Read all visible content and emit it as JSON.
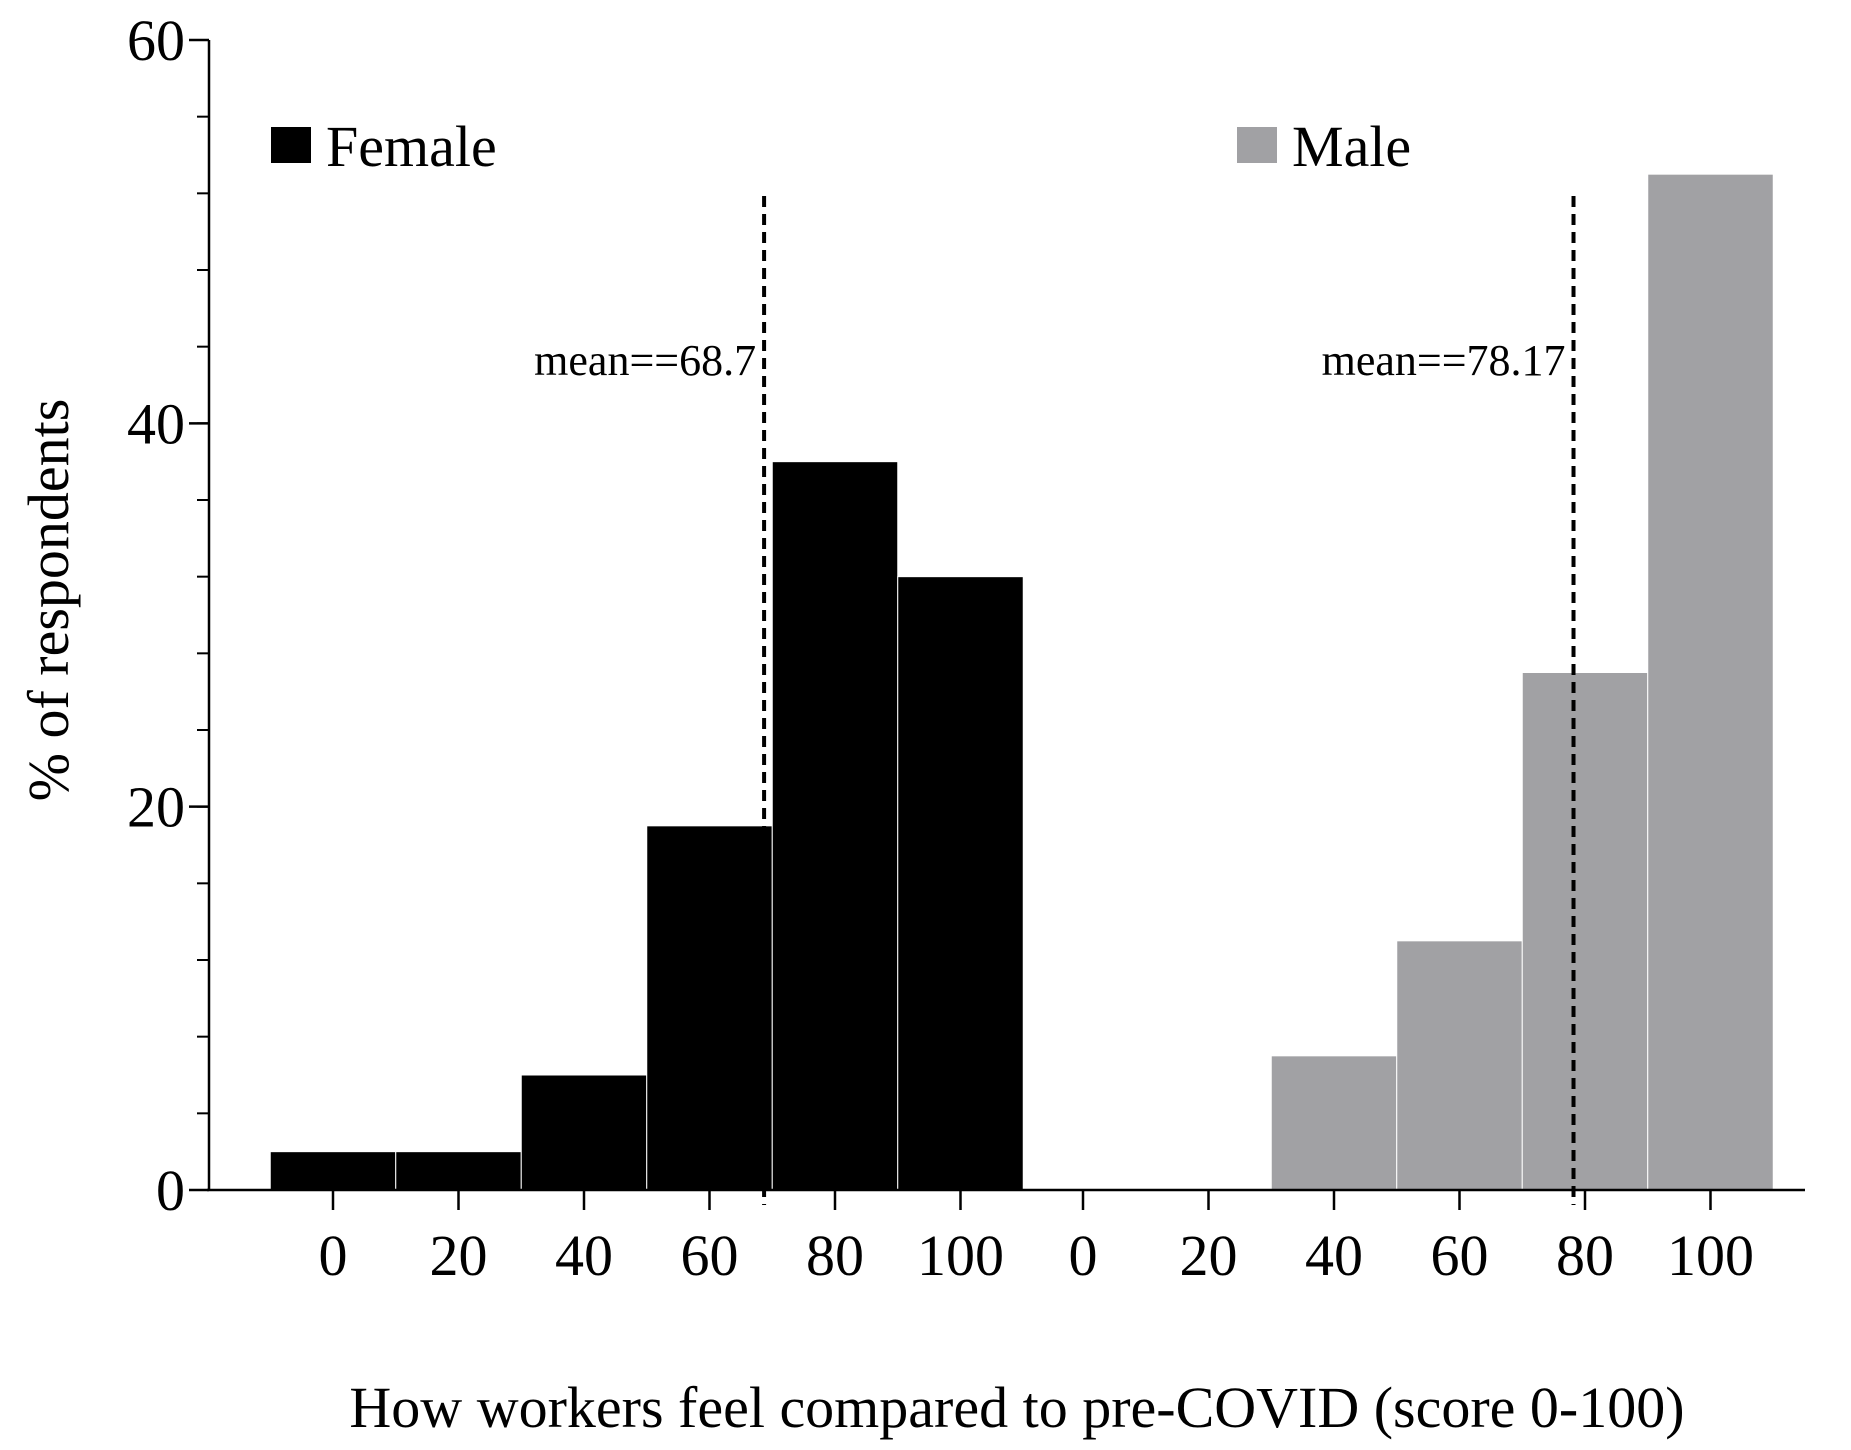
{
  "chart_data": {
    "type": "bar",
    "subtype": "histogram",
    "xlabel": "How workers feel compared to pre-COVID (score 0-100)",
    "ylabel": "% of respondents",
    "ylim": [
      0,
      60
    ],
    "yticks_major": [
      0,
      20,
      40,
      60
    ],
    "yticks_minor_step": 4,
    "bin_width": 20,
    "bin_centers": [
      0,
      20,
      40,
      60,
      80,
      100
    ],
    "x_tick_labels": [
      "0",
      "20",
      "40",
      "60",
      "80",
      "100"
    ],
    "legend_placement": "top",
    "series": [
      {
        "name": "Female",
        "color": "#000000",
        "values": [
          2,
          2,
          6,
          19,
          38,
          32
        ],
        "mean": 68.7,
        "mean_label": "mean==68.7"
      },
      {
        "name": "Male",
        "color": "#a1a1a4",
        "values": [
          0,
          0,
          7,
          13,
          27,
          53
        ],
        "mean": 78.17,
        "mean_label": "mean==78.17"
      }
    ]
  }
}
